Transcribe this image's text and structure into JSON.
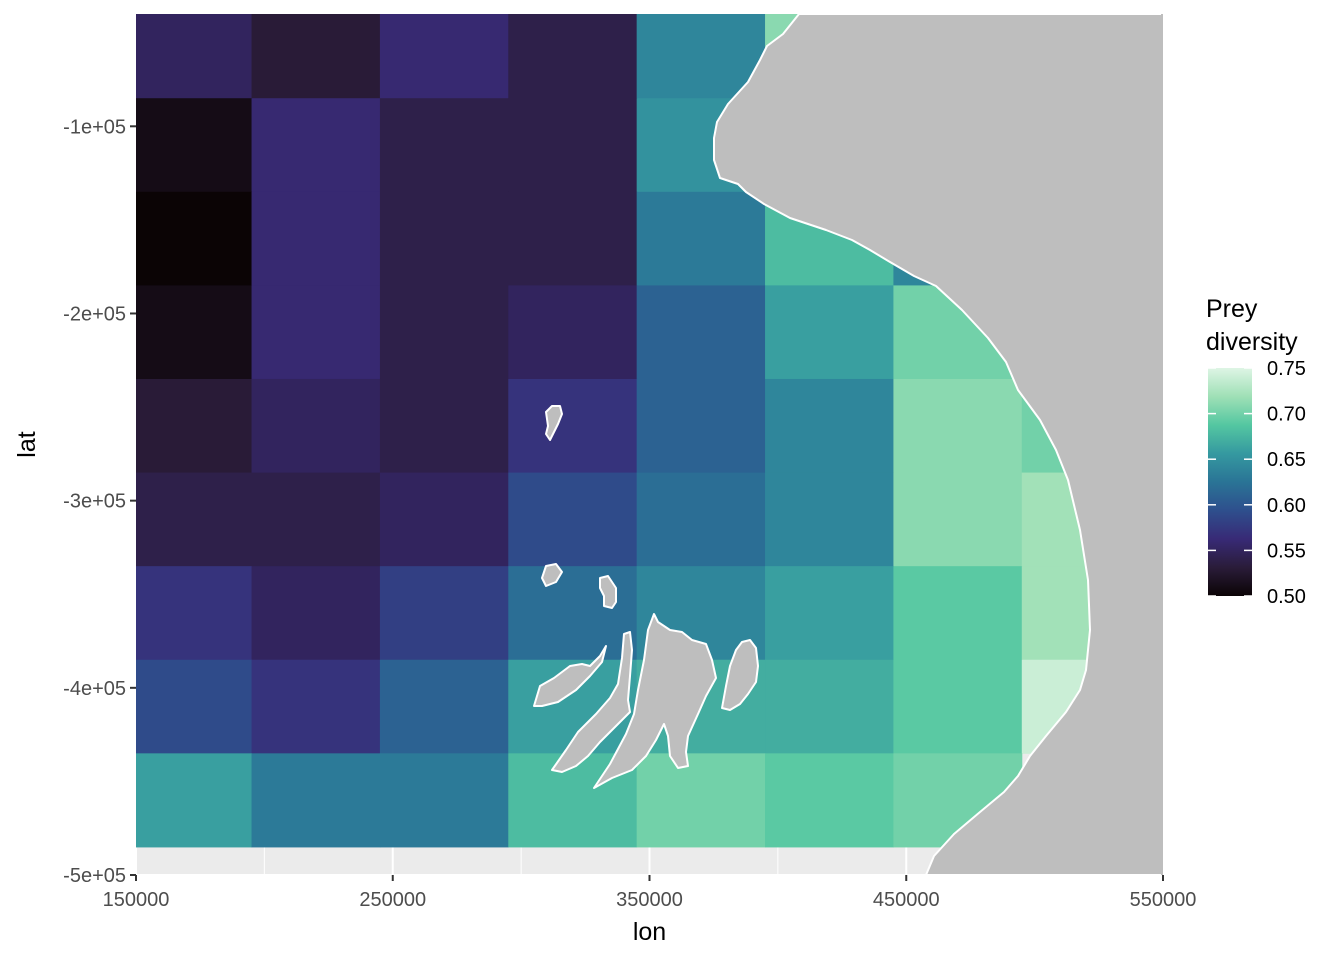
{
  "chart_data": {
    "type": "heatmap",
    "title": "",
    "xlabel": "lon",
    "ylabel": "lat",
    "xlim": [
      150000,
      550000
    ],
    "ylim": [
      -500000,
      -40000
    ],
    "x_ticks": [
      150000,
      250000,
      350000,
      450000,
      550000
    ],
    "x_tick_labels": [
      "150000",
      "250000",
      "350000",
      "450000",
      "550000"
    ],
    "y_ticks": [
      -100000,
      -200000,
      -300000,
      -400000,
      -500000
    ],
    "y_tick_labels": [
      "-1e+05",
      "-2e+05",
      "-3e+05",
      "-4e+05",
      "-5e+05"
    ],
    "cell_size": [
      50000,
      50000
    ],
    "x_centers": [
      170000,
      220000,
      270000,
      320000,
      370000,
      420000,
      470000,
      520000
    ],
    "y_centers": [
      -60000,
      -110000,
      -160000,
      -210000,
      -260000,
      -310000,
      -360000,
      -410000,
      -460000
    ],
    "values": [
      [
        0.55,
        0.53,
        0.56,
        0.54,
        0.64,
        0.71,
        null,
        null
      ],
      [
        0.51,
        0.56,
        0.54,
        0.54,
        0.65,
        0.7,
        null,
        null
      ],
      [
        0.5,
        0.56,
        0.54,
        0.54,
        0.63,
        0.68,
        0.64,
        null
      ],
      [
        0.51,
        0.56,
        0.54,
        0.55,
        0.61,
        0.66,
        0.7,
        null
      ],
      [
        0.53,
        0.55,
        0.54,
        0.57,
        0.61,
        0.64,
        0.71,
        0.7
      ],
      [
        0.54,
        0.54,
        0.55,
        0.59,
        0.62,
        0.64,
        0.71,
        0.72
      ],
      [
        0.57,
        0.55,
        0.58,
        0.62,
        0.64,
        0.66,
        0.69,
        0.72
      ],
      [
        0.59,
        0.57,
        0.61,
        0.66,
        0.67,
        0.67,
        0.69,
        0.74
      ],
      [
        0.66,
        0.63,
        0.63,
        0.68,
        0.7,
        0.69,
        0.7,
        null
      ]
    ],
    "land_color": "#bebebe",
    "coastline_color": "#ffffff",
    "panel_background": "#ebebeb",
    "grid": true,
    "legend": {
      "title_line1": "Prey",
      "title_line2": "diversity",
      "placement": "right",
      "ticks": [
        0.5,
        0.55,
        0.6,
        0.65,
        0.7,
        0.75
      ],
      "tick_labels": [
        "0.50",
        "0.55",
        "0.60",
        "0.65",
        "0.70",
        "0.75"
      ],
      "range": [
        0.5,
        0.75
      ],
      "colormap": [
        "#0b0405",
        "#2a1c39",
        "#382a76",
        "#2e4f8d",
        "#2a7496",
        "#3599a0",
        "#54c7a1",
        "#9fe0b6",
        "#def5e5"
      ]
    }
  }
}
